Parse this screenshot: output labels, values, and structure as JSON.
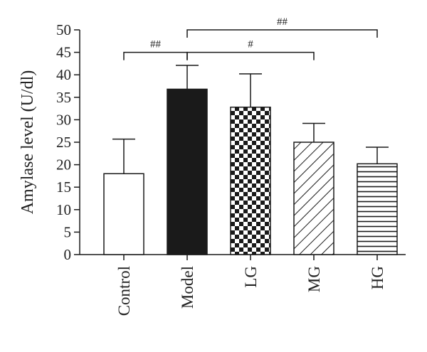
{
  "chart_data": {
    "type": "bar",
    "categories": [
      "Control",
      "Model",
      "LG",
      "MG",
      "HG"
    ],
    "values": [
      18,
      36.8,
      32.8,
      25,
      20.2
    ],
    "errors": [
      7.7,
      5.3,
      7.4,
      4.2,
      3.7
    ],
    "patterns": [
      "none",
      "solid",
      "checker",
      "diagonal",
      "horizontal"
    ],
    "title": "",
    "xlabel": "",
    "ylabel": "Amylase level (U/dl)",
    "ylim": [
      0,
      50
    ],
    "yticks": [
      0,
      5,
      10,
      15,
      20,
      25,
      30,
      35,
      40,
      45,
      50
    ],
    "grid": false,
    "legend": "none",
    "significance": [
      {
        "from": "Control",
        "to": "Model",
        "label": "##",
        "y": 45
      },
      {
        "from": "Model",
        "to": "MG",
        "label": "#",
        "y": 45
      },
      {
        "from": "Model",
        "to": "HG",
        "label": "##",
        "y": 50
      }
    ],
    "colors": {
      "bar_fill": "#1a1a1a",
      "bar_outline": "#1a1a1a",
      "background": "#ffffff"
    }
  }
}
